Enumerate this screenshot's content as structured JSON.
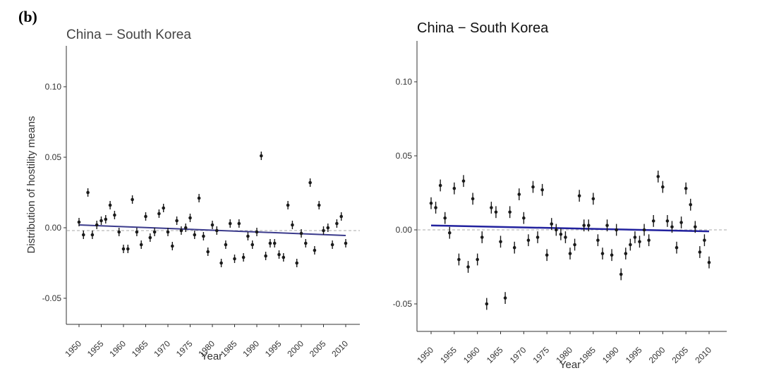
{
  "panel_label": "(b)",
  "chart_data": [
    {
      "type": "scatter",
      "title": "China − South Korea",
      "xlabel": "Year",
      "ylabel": "Distribution of hostility means",
      "xlim": [
        1948,
        2012
      ],
      "ylim": [
        -0.07,
        0.13
      ],
      "xticks": [
        "1950",
        "1955",
        "1960",
        "1965",
        "1970",
        "1975",
        "1980",
        "1985",
        "1990",
        "1995",
        "2000",
        "2005",
        "2010"
      ],
      "yticks": [
        "-0.05",
        "0.00",
        "0.05",
        "0.10"
      ],
      "error_bar_half_width": 0.003,
      "reference_line_y": -0.002,
      "trend": {
        "x": [
          1950,
          2010
        ],
        "y": [
          0.002,
          -0.0055
        ]
      },
      "points": [
        [
          1950,
          0.004
        ],
        [
          1951,
          -0.005
        ],
        [
          1952,
          0.025
        ],
        [
          1953,
          -0.005
        ],
        [
          1954,
          0.002
        ],
        [
          1955,
          0.005
        ],
        [
          1956,
          0.006
        ],
        [
          1957,
          0.016
        ],
        [
          1958,
          0.009
        ],
        [
          1959,
          -0.003
        ],
        [
          1960,
          -0.015
        ],
        [
          1961,
          -0.015
        ],
        [
          1962,
          0.02
        ],
        [
          1963,
          -0.003
        ],
        [
          1964,
          -0.012
        ],
        [
          1965,
          0.008
        ],
        [
          1966,
          -0.007
        ],
        [
          1967,
          -0.003
        ],
        [
          1968,
          0.01
        ],
        [
          1969,
          0.014
        ],
        [
          1970,
          -0.003
        ],
        [
          1971,
          -0.013
        ],
        [
          1972,
          0.005
        ],
        [
          1973,
          -0.002
        ],
        [
          1974,
          0.0
        ],
        [
          1975,
          0.007
        ],
        [
          1976,
          -0.005
        ],
        [
          1977,
          0.021
        ],
        [
          1978,
          -0.006
        ],
        [
          1979,
          -0.017
        ],
        [
          1980,
          0.002
        ],
        [
          1981,
          -0.002
        ],
        [
          1982,
          -0.025
        ],
        [
          1983,
          -0.012
        ],
        [
          1984,
          0.003
        ],
        [
          1985,
          -0.022
        ],
        [
          1986,
          0.003
        ],
        [
          1987,
          -0.021
        ],
        [
          1988,
          -0.006
        ],
        [
          1989,
          -0.012
        ],
        [
          1990,
          -0.003
        ],
        [
          1991,
          0.051
        ],
        [
          1992,
          -0.02
        ],
        [
          1993,
          -0.011
        ],
        [
          1994,
          -0.011
        ],
        [
          1995,
          -0.019
        ],
        [
          1996,
          -0.021
        ],
        [
          1997,
          0.016
        ],
        [
          1998,
          0.002
        ],
        [
          1999,
          -0.025
        ],
        [
          2000,
          -0.004
        ],
        [
          2001,
          -0.011
        ],
        [
          2002,
          0.032
        ],
        [
          2003,
          -0.016
        ],
        [
          2004,
          0.016
        ],
        [
          2005,
          -0.002
        ],
        [
          2006,
          0.0
        ],
        [
          2007,
          -0.012
        ],
        [
          2008,
          0.003
        ],
        [
          2009,
          0.008
        ],
        [
          2010,
          -0.011
        ]
      ]
    },
    {
      "type": "scatter",
      "title": "China − South Korea",
      "xlabel": "Year",
      "ylabel": "",
      "xlim": [
        1948,
        2012
      ],
      "ylim": [
        -0.07,
        0.13
      ],
      "xticks": [
        "1950",
        "1955",
        "1960",
        "1965",
        "1970",
        "1975",
        "1980",
        "1985",
        "1990",
        "1995",
        "2000",
        "2005",
        "2010"
      ],
      "yticks": [
        "-0.05",
        "0.00",
        "0.05",
        "0.10"
      ],
      "error_bar_half_width": 0.004,
      "reference_line_y": 0.0,
      "trend": {
        "x": [
          1950,
          2010
        ],
        "y": [
          0.003,
          -0.001
        ]
      },
      "points": [
        [
          1950,
          0.018
        ],
        [
          1951,
          0.015
        ],
        [
          1952,
          0.03
        ],
        [
          1953,
          0.008
        ],
        [
          1954,
          -0.002
        ],
        [
          1955,
          0.028
        ],
        [
          1956,
          -0.02
        ],
        [
          1957,
          0.033
        ],
        [
          1958,
          -0.025
        ],
        [
          1959,
          0.021
        ],
        [
          1960,
          -0.02
        ],
        [
          1961,
          -0.005
        ],
        [
          1962,
          -0.05
        ],
        [
          1963,
          0.015
        ],
        [
          1964,
          0.012
        ],
        [
          1965,
          -0.008
        ],
        [
          1966,
          -0.046
        ],
        [
          1967,
          0.012
        ],
        [
          1968,
          -0.012
        ],
        [
          1969,
          0.024
        ],
        [
          1970,
          0.008
        ],
        [
          1971,
          -0.007
        ],
        [
          1972,
          0.029
        ],
        [
          1973,
          -0.005
        ],
        [
          1974,
          0.027
        ],
        [
          1975,
          -0.017
        ],
        [
          1976,
          0.004
        ],
        [
          1977,
          0.0
        ],
        [
          1978,
          -0.003
        ],
        [
          1979,
          -0.005
        ],
        [
          1980,
          -0.016
        ],
        [
          1981,
          -0.01
        ],
        [
          1982,
          0.023
        ],
        [
          1983,
          0.003
        ],
        [
          1984,
          0.003
        ],
        [
          1985,
          0.021
        ],
        [
          1986,
          -0.007
        ],
        [
          1987,
          -0.016
        ],
        [
          1988,
          0.003
        ],
        [
          1989,
          -0.017
        ],
        [
          1990,
          0.0
        ],
        [
          1991,
          -0.03
        ],
        [
          1992,
          -0.016
        ],
        [
          1993,
          -0.01
        ],
        [
          1994,
          -0.005
        ],
        [
          1995,
          -0.008
        ],
        [
          1996,
          0.0
        ],
        [
          1997,
          -0.007
        ],
        [
          1998,
          0.006
        ],
        [
          1999,
          0.036
        ],
        [
          2000,
          0.029
        ],
        [
          2001,
          0.006
        ],
        [
          2002,
          0.002
        ],
        [
          2003,
          -0.012
        ],
        [
          2004,
          0.005
        ],
        [
          2005,
          0.028
        ],
        [
          2006,
          0.017
        ],
        [
          2007,
          0.002
        ],
        [
          2008,
          -0.015
        ],
        [
          2009,
          -0.007
        ],
        [
          2010,
          -0.022
        ]
      ]
    }
  ],
  "colors": {
    "points": "#1a1a1a",
    "trend_left": "#3b3b8c",
    "trend_right": "#22229e",
    "reference": "#aaaaaa",
    "axis": "#333333"
  }
}
